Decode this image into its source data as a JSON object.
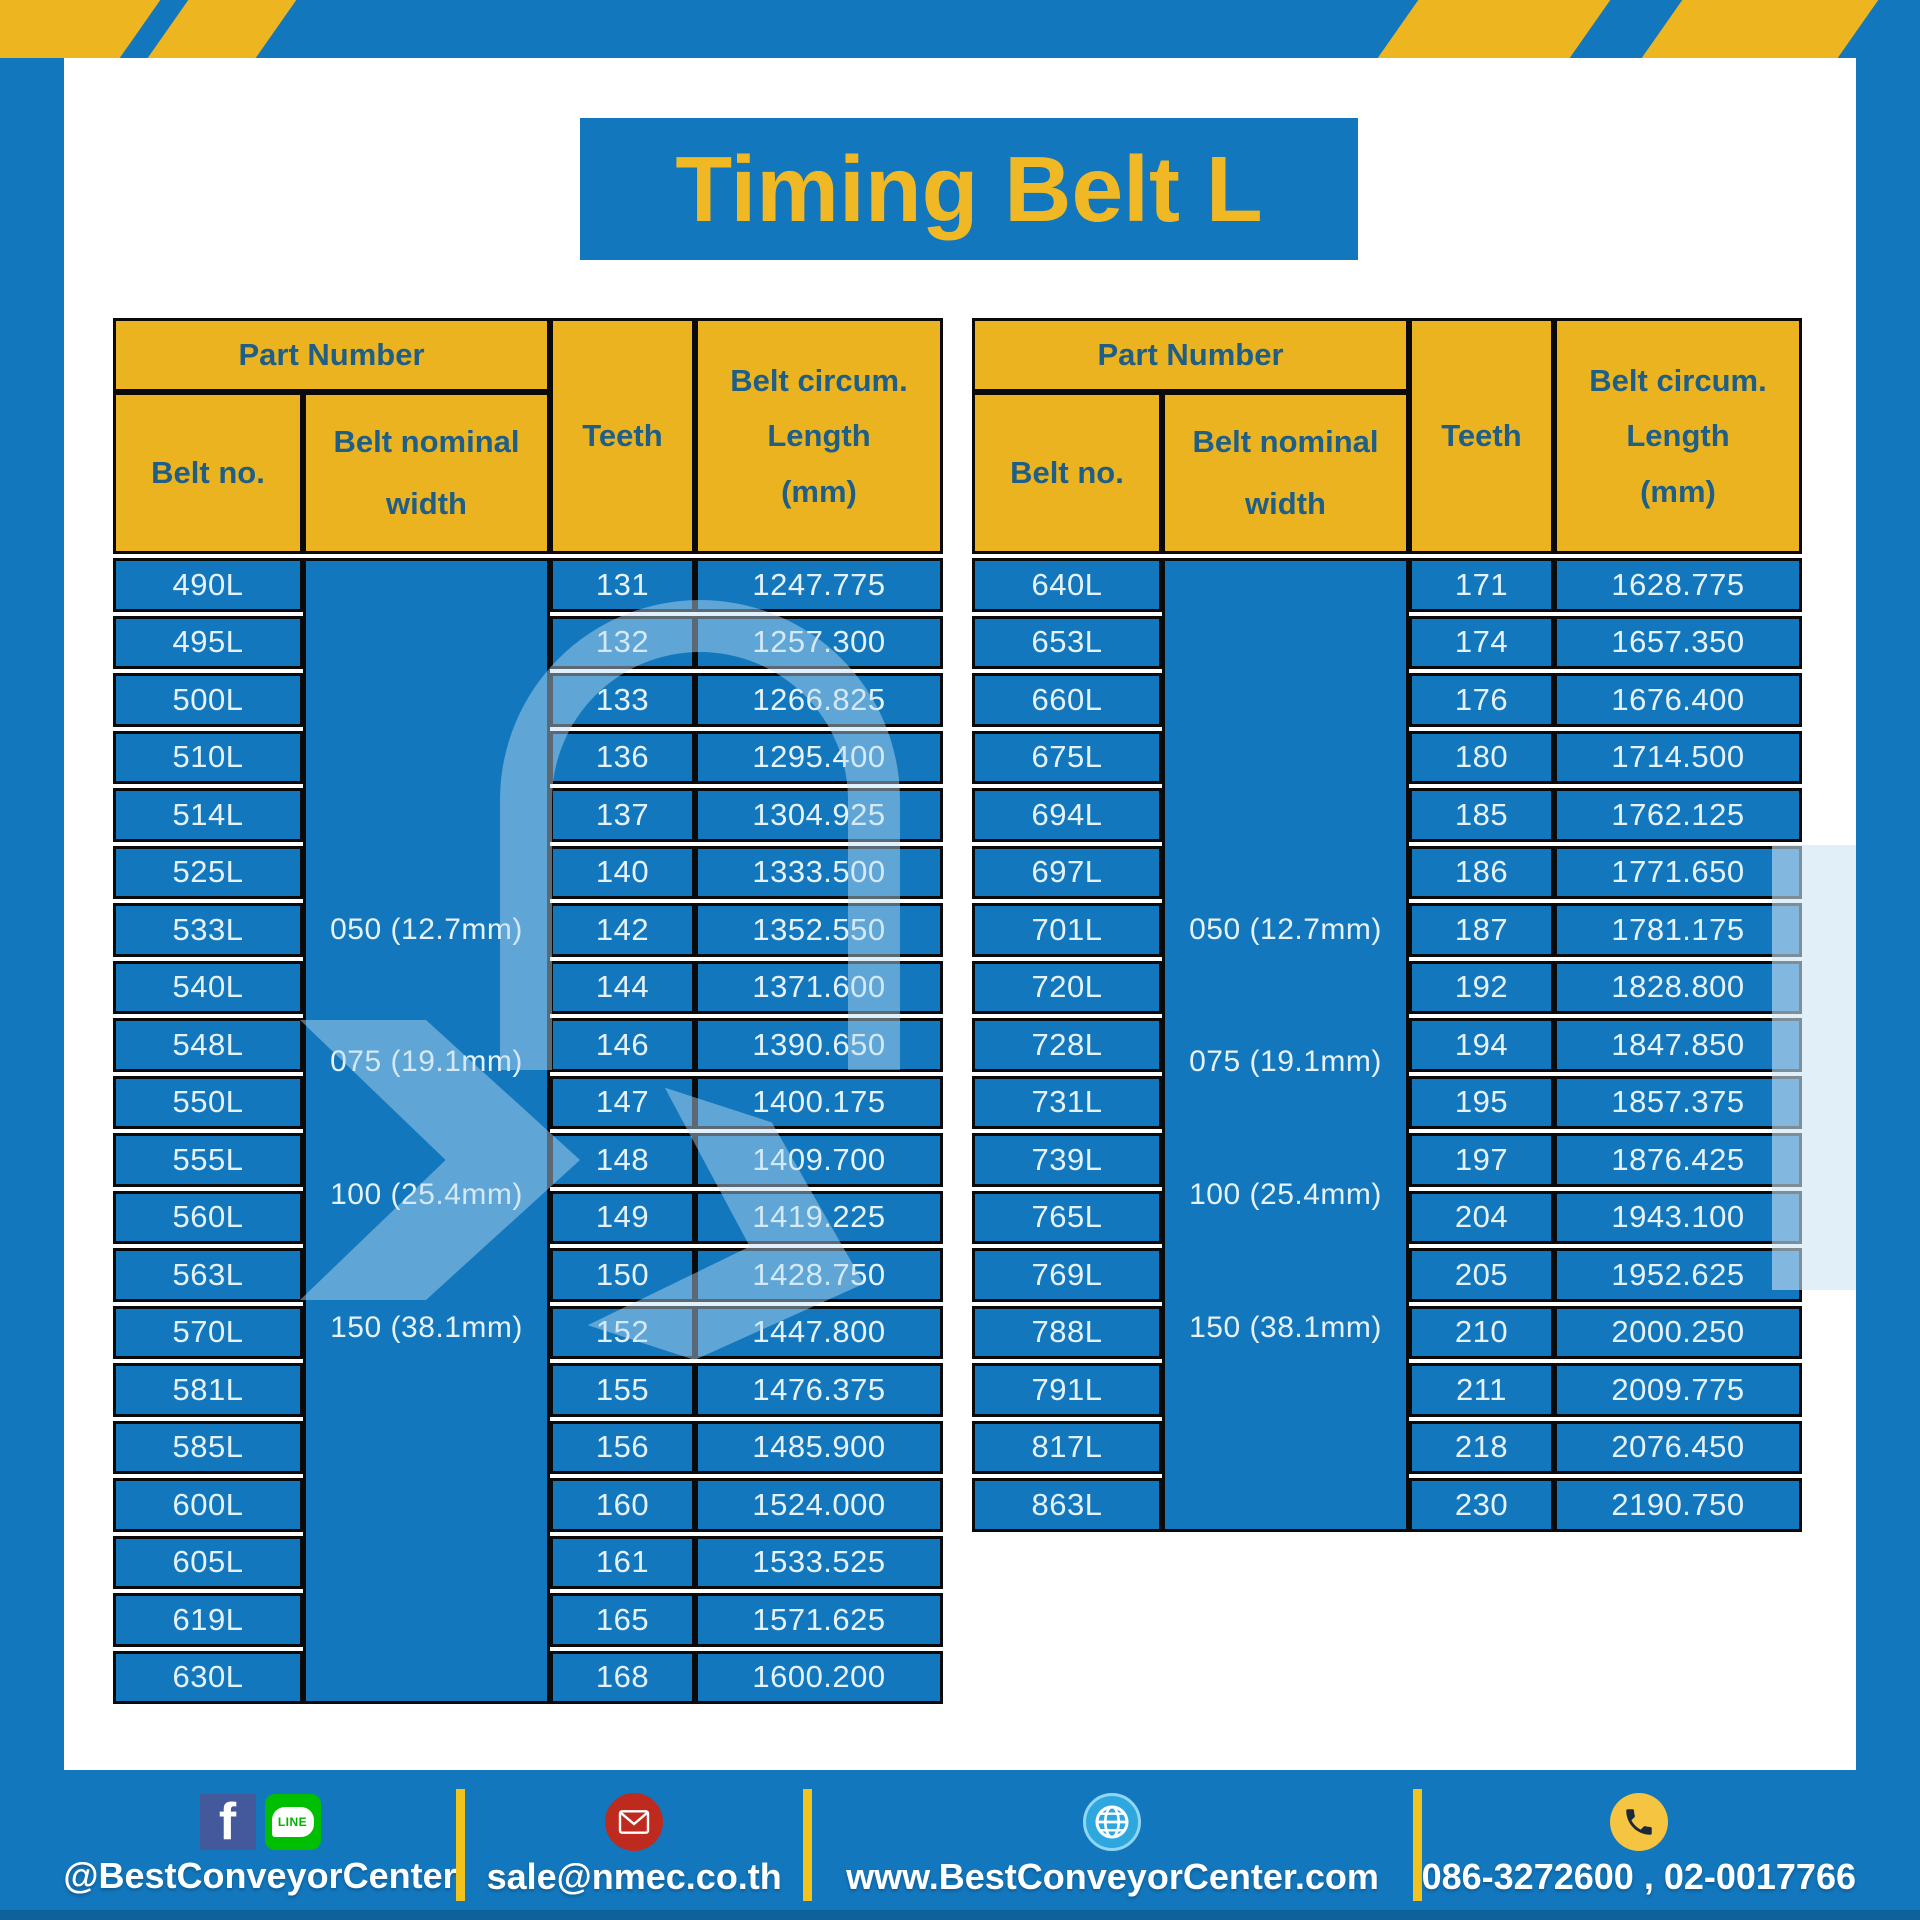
{
  "title": "Timing Belt L",
  "header": {
    "part_number": "Part Number",
    "belt_no": "Belt no.",
    "belt_nominal_width": "Belt nominal width",
    "teeth": "Teeth",
    "belt_circum_1": "Belt circum.",
    "belt_circum_2": "Length",
    "belt_circum_3": "(mm)"
  },
  "width_labels": [
    "050 (12.7mm)",
    "075 (19.1mm)",
    "100 (25.4mm)",
    "150 (38.1mm)"
  ],
  "tables": [
    {
      "rows": [
        {
          "belt": "490L",
          "teeth": "131",
          "length": "1247.775"
        },
        {
          "belt": "495L",
          "teeth": "132",
          "length": "1257.300"
        },
        {
          "belt": "500L",
          "teeth": "133",
          "length": "1266.825"
        },
        {
          "belt": "510L",
          "teeth": "136",
          "length": "1295.400"
        },
        {
          "belt": "514L",
          "teeth": "137",
          "length": "1304.925"
        },
        {
          "belt": "525L",
          "teeth": "140",
          "length": "1333.500"
        },
        {
          "belt": "533L",
          "teeth": "142",
          "length": "1352.550"
        },
        {
          "belt": "540L",
          "teeth": "144",
          "length": "1371.600"
        },
        {
          "belt": "548L",
          "teeth": "146",
          "length": "1390.650"
        },
        {
          "belt": "550L",
          "teeth": "147",
          "length": "1400.175"
        },
        {
          "belt": "555L",
          "teeth": "148",
          "length": "1409.700"
        },
        {
          "belt": "560L",
          "teeth": "149",
          "length": "1419.225"
        },
        {
          "belt": "563L",
          "teeth": "150",
          "length": "1428.750"
        },
        {
          "belt": "570L",
          "teeth": "152",
          "length": "1447.800"
        },
        {
          "belt": "581L",
          "teeth": "155",
          "length": "1476.375"
        },
        {
          "belt": "585L",
          "teeth": "156",
          "length": "1485.900"
        },
        {
          "belt": "600L",
          "teeth": "160",
          "length": "1524.000"
        },
        {
          "belt": "605L",
          "teeth": "161",
          "length": "1533.525"
        },
        {
          "belt": "619L",
          "teeth": "165",
          "length": "1571.625"
        },
        {
          "belt": "630L",
          "teeth": "168",
          "length": "1600.200"
        }
      ]
    },
    {
      "rows": [
        {
          "belt": "640L",
          "teeth": "171",
          "length": "1628.775"
        },
        {
          "belt": "653L",
          "teeth": "174",
          "length": "1657.350"
        },
        {
          "belt": "660L",
          "teeth": "176",
          "length": "1676.400"
        },
        {
          "belt": "675L",
          "teeth": "180",
          "length": "1714.500"
        },
        {
          "belt": "694L",
          "teeth": "185",
          "length": "1762.125"
        },
        {
          "belt": "697L",
          "teeth": "186",
          "length": "1771.650"
        },
        {
          "belt": "701L",
          "teeth": "187",
          "length": "1781.175"
        },
        {
          "belt": "720L",
          "teeth": "192",
          "length": "1828.800"
        },
        {
          "belt": "728L",
          "teeth": "194",
          "length": "1847.850"
        },
        {
          "belt": "731L",
          "teeth": "195",
          "length": "1857.375"
        },
        {
          "belt": "739L",
          "teeth": "197",
          "length": "1876.425"
        },
        {
          "belt": "765L",
          "teeth": "204",
          "length": "1943.100"
        },
        {
          "belt": "769L",
          "teeth": "205",
          "length": "1952.625"
        },
        {
          "belt": "788L",
          "teeth": "210",
          "length": "2000.250"
        },
        {
          "belt": "791L",
          "teeth": "211",
          "length": "2009.775"
        },
        {
          "belt": "817L",
          "teeth": "218",
          "length": "2076.450"
        },
        {
          "belt": "863L",
          "teeth": "230",
          "length": "2190.750"
        }
      ]
    }
  ],
  "footer": {
    "social_handle": "@BestConveyorCenter",
    "facebook_letter": "f",
    "line_badge": "LINE",
    "email": "sale@nmec.co.th",
    "website": "www.BestConveyorCenter.com",
    "phone_numbers": "086-3272600 , 02-0017766"
  },
  "colors": {
    "frame_blue": "#1377BD",
    "header_yellow": "#EBB31F",
    "header_text_blue": "#1F5E86",
    "cell_text": "#E6F2FA",
    "title_yellow": "#F0B824",
    "divider_yellow": "#F2C31D",
    "facebook_blue": "#44599C",
    "line_green": "#00BF00",
    "email_red": "#BE2A1E",
    "globe_blue": "#2EA7DF",
    "phone_yellow": "#F5C440"
  }
}
